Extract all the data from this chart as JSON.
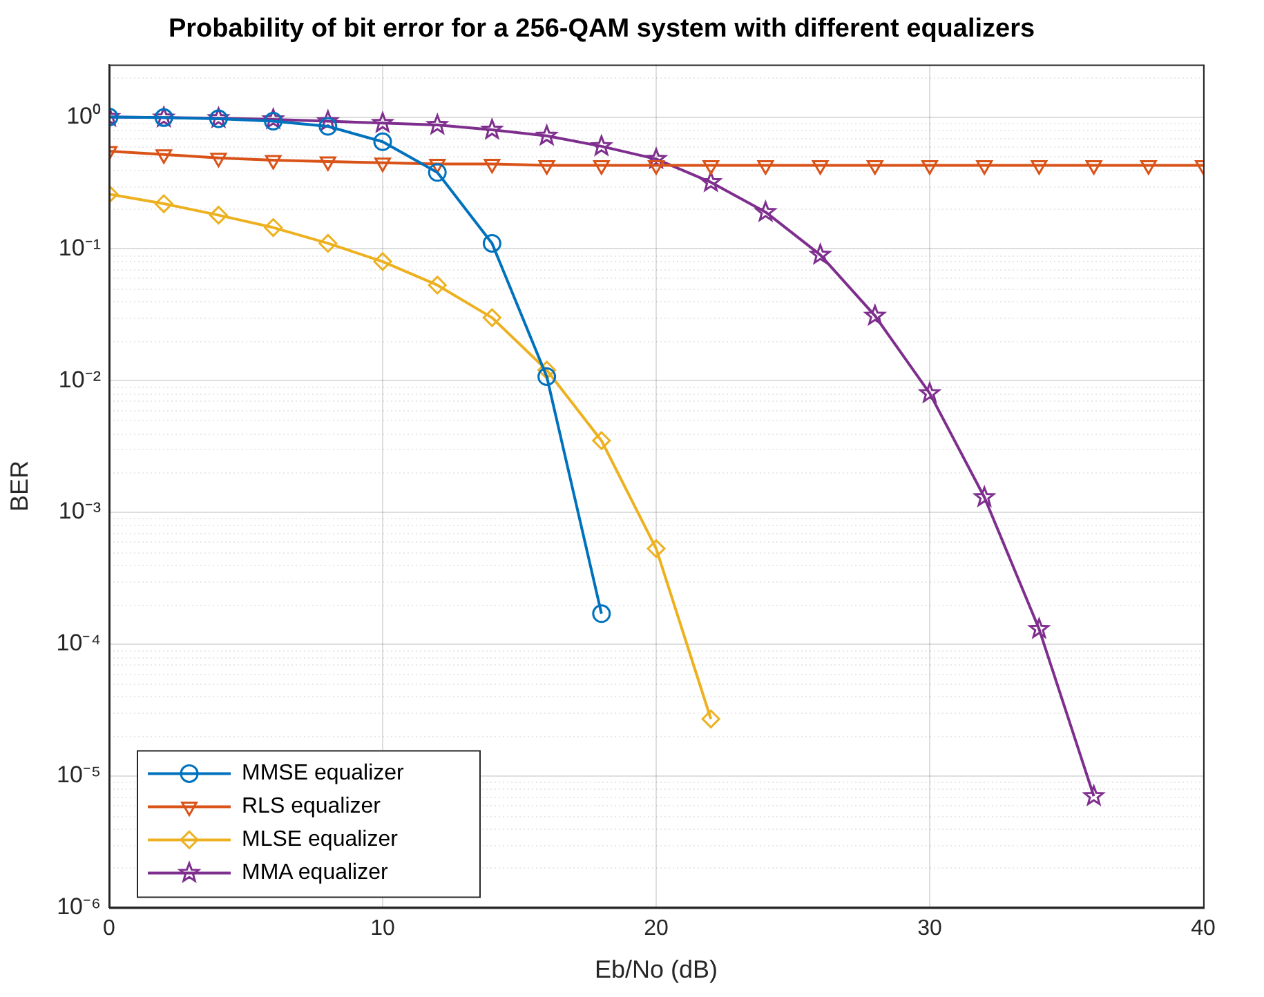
{
  "chart_data": {
    "type": "line",
    "title": "Probability of bit error for a 256-QAM system with different equalizers",
    "xlabel": "Eb/No (dB)",
    "ylabel": "BER",
    "log": "y",
    "grid": true,
    "legend": "bottom left",
    "line_style": "solid",
    "xlim": [
      0,
      40
    ],
    "xticks": [
      0,
      10,
      20,
      30,
      40
    ],
    "ylim": [
      1e-06,
      2.5
    ],
    "yticks": [
      {
        "value": 1e-06,
        "label": "10⁻⁶"
      },
      {
        "value": 1e-05,
        "label": "10⁻⁵"
      },
      {
        "value": 0.0001,
        "label": "10⁻⁴"
      },
      {
        "value": 0.001,
        "label": "10⁻³"
      },
      {
        "value": 0.01,
        "label": "10⁻²"
      },
      {
        "value": 0.1,
        "label": "10⁻¹"
      },
      {
        "value": 1,
        "label": "10⁰"
      }
    ],
    "series": [
      {
        "name": "MMSE equalizer",
        "color": "#0072bd",
        "marker": "circle",
        "x": [
          0,
          2,
          4,
          6,
          8,
          10,
          12,
          14,
          16,
          18
        ],
        "values": [
          1.0,
          0.99,
          0.97,
          0.93,
          0.85,
          0.65,
          0.38,
          0.11,
          0.0107,
          0.00017
        ]
      },
      {
        "name": "RLS equalizer",
        "color": "#d95319",
        "marker": "triangle",
        "x": [
          0,
          2,
          4,
          6,
          8,
          10,
          12,
          14,
          16,
          18,
          20,
          22,
          24,
          26,
          28,
          30,
          32,
          34,
          36,
          38,
          40
        ],
        "values": [
          0.55,
          0.52,
          0.49,
          0.47,
          0.46,
          0.45,
          0.44,
          0.44,
          0.43,
          0.43,
          0.43,
          0.43,
          0.43,
          0.43,
          0.43,
          0.43,
          0.43,
          0.43,
          0.43,
          0.43,
          0.43
        ]
      },
      {
        "name": "MLSE equalizer",
        "color": "#edb120",
        "marker": "diamond",
        "x": [
          0,
          2,
          4,
          6,
          8,
          10,
          12,
          14,
          16,
          18,
          20,
          22
        ],
        "values": [
          0.26,
          0.22,
          0.18,
          0.145,
          0.11,
          0.08,
          0.053,
          0.03,
          0.012,
          0.0035,
          0.00053,
          2.7e-05
        ]
      },
      {
        "name": "MMA equalizer",
        "color": "#7e2f8e",
        "marker": "star",
        "x": [
          0,
          2,
          4,
          6,
          8,
          10,
          12,
          14,
          16,
          18,
          20,
          22,
          24,
          26,
          28,
          30,
          32,
          34,
          36
        ],
        "values": [
          1.0,
          0.99,
          0.98,
          0.96,
          0.93,
          0.9,
          0.87,
          0.8,
          0.72,
          0.6,
          0.48,
          0.32,
          0.19,
          0.09,
          0.031,
          0.008,
          0.0013,
          0.00013,
          7e-06
        ]
      }
    ]
  }
}
